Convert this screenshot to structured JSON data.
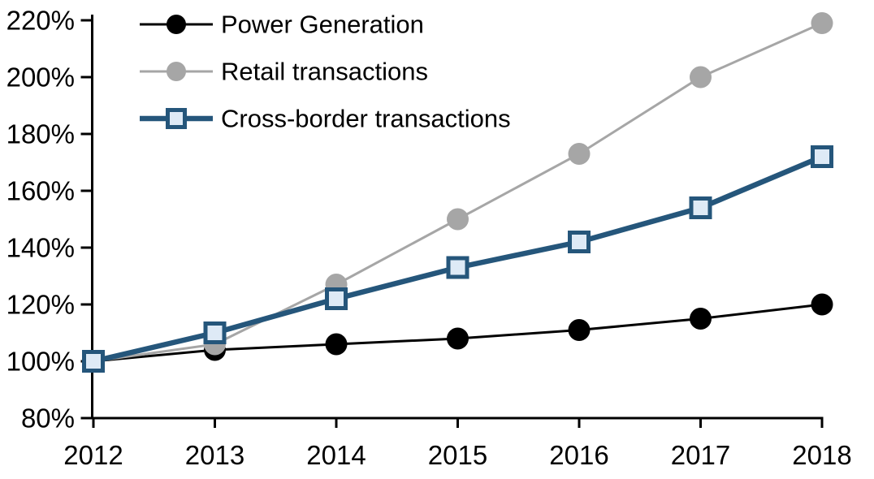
{
  "chart_data": {
    "type": "line",
    "title": "",
    "xlabel": "",
    "ylabel": "",
    "grid": false,
    "background": "#FFFFFF",
    "axis_color": "#000000",
    "x": [
      "2012",
      "2013",
      "2014",
      "2015",
      "2016",
      "2017",
      "2018"
    ],
    "series": [
      {
        "name": "Power Generation",
        "values": [
          100,
          104,
          106,
          108,
          111,
          115,
          120
        ],
        "color": "#000000",
        "marker": "circle",
        "marker_fill": "#000000",
        "line_width": 3
      },
      {
        "name": "Retail transactions",
        "values": [
          100,
          106,
          127,
          150,
          173,
          200,
          219
        ],
        "color": "#A6A6A6",
        "marker": "circle",
        "marker_fill": "#A6A6A6",
        "line_width": 3
      },
      {
        "name": "Cross-border transactions",
        "values": [
          100,
          110,
          122,
          133,
          142,
          154,
          172
        ],
        "color": "#25567B",
        "marker": "square",
        "marker_fill": "#DEEAF6",
        "line_width": 6.5
      }
    ],
    "y_axis": {
      "min": 80,
      "max": 220,
      "tick_step": 20,
      "tick_labels": [
        "80%",
        "100%",
        "120%",
        "140%",
        "160%",
        "180%",
        "200%",
        "220%"
      ]
    },
    "x_axis": {
      "tick_labels": [
        "2012",
        "2013",
        "2014",
        "2015",
        "2016",
        "2017",
        "2018"
      ]
    },
    "legend": {
      "position": "top-left",
      "entries": [
        "Power Generation",
        "Retail transactions",
        "Cross-border transactions"
      ]
    }
  }
}
